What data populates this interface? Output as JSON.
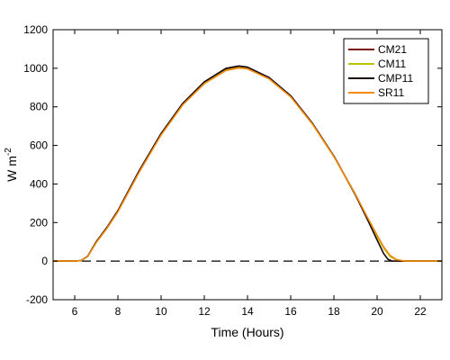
{
  "chart_data": {
    "type": "line",
    "title": "",
    "xlabel": "Time (Hours)",
    "ylabel": {
      "base": "W m",
      "sup": "-2"
    },
    "xlim": [
      5,
      23
    ],
    "ylim": [
      -200,
      1200
    ],
    "xticks": [
      6,
      8,
      10,
      12,
      14,
      16,
      18,
      20,
      22
    ],
    "yticks": [
      -200,
      0,
      200,
      400,
      600,
      800,
      1000,
      1200
    ],
    "legend_position": "top-right",
    "grid": false,
    "reference_line": {
      "y": 0,
      "style": "dashed",
      "color": "#000000"
    },
    "series": [
      {
        "name": "CM21",
        "color": "#7a1414",
        "x": [
          5,
          6,
          6.3,
          6.6,
          7.0,
          7.5,
          8,
          9,
          10,
          11,
          12,
          13,
          13.6,
          14,
          15,
          16,
          17,
          18,
          19,
          19.5,
          20,
          20.3,
          20.6,
          20.9,
          21.2,
          22,
          23
        ],
        "y": [
          0,
          0,
          3,
          25,
          100,
          175,
          260,
          470,
          660,
          815,
          925,
          993,
          1005,
          1000,
          948,
          855,
          715,
          545,
          345,
          235,
          130,
          70,
          25,
          6,
          0,
          0,
          0
        ]
      },
      {
        "name": "CM11",
        "color": "#b8c400",
        "x": [
          5,
          6,
          6.3,
          6.6,
          7.0,
          7.5,
          8,
          9,
          10,
          11,
          12,
          13,
          13.6,
          14,
          15,
          16,
          17,
          18,
          19,
          19.5,
          20,
          20.3,
          20.6,
          20.9,
          21.2,
          22,
          23
        ],
        "y": [
          0,
          0,
          3,
          24,
          98,
          172,
          257,
          466,
          656,
          812,
          922,
          990,
          1003,
          998,
          946,
          853,
          713,
          543,
          343,
          233,
          128,
          68,
          24,
          6,
          0,
          0,
          0
        ]
      },
      {
        "name": "CMP11",
        "color": "#1a0a0a",
        "x": [
          5,
          6,
          6.3,
          6.6,
          7.0,
          7.5,
          8,
          9,
          10,
          11,
          12,
          13,
          13.6,
          14,
          15,
          16,
          17,
          18,
          19,
          19.5,
          20,
          20.3,
          20.5,
          20.7,
          21.0,
          22,
          23
        ],
        "y": [
          0,
          0,
          3,
          25,
          101,
          176,
          262,
          472,
          662,
          818,
          930,
          1000,
          1012,
          1006,
          952,
          858,
          716,
          545,
          342,
          228,
          110,
          40,
          10,
          0,
          0,
          0,
          0
        ]
      },
      {
        "name": "SR11",
        "color": "#f28a0c",
        "x": [
          5,
          6,
          6.3,
          6.6,
          7.0,
          7.5,
          8,
          9,
          10,
          11,
          12,
          13,
          13.6,
          14,
          15,
          16,
          17,
          18,
          19,
          19.5,
          20,
          20.3,
          20.6,
          20.9,
          21.3,
          22,
          23
        ],
        "y": [
          0,
          0,
          3,
          24,
          97,
          171,
          256,
          464,
          654,
          810,
          920,
          988,
          1001,
          997,
          945,
          852,
          712,
          542,
          346,
          238,
          135,
          75,
          30,
          8,
          0,
          0,
          0
        ]
      }
    ]
  }
}
